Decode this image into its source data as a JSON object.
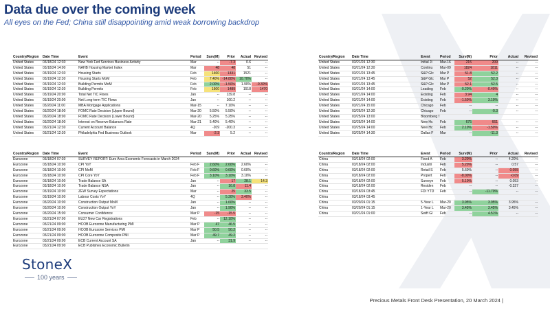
{
  "header": {
    "title": "Data due over  the  coming week",
    "subtitle": "All eyes on the Fed; China still disappointing amid weak borrowing backdrop"
  },
  "columns_left": [
    "Country/Region",
    "Date Time",
    "Event",
    "Period",
    "Surv(M)",
    "Prior",
    "Actual",
    "Revised"
  ],
  "columns_right": [
    "Country/Region",
    "Date Time",
    "Event",
    "Period",
    "Surv(M)",
    "Prior",
    "Actual",
    "Revised"
  ],
  "us_rows": [
    {
      "c": "United States",
      "dt": "03/18/24 12:30",
      "ev": "New York Fed Services Business Activity",
      "p": "Mar",
      "s": "--",
      "pr": "-7.3",
      "a": "0.6",
      "r": "--",
      "hl": {
        "pr": "red"
      }
    },
    {
      "c": "United States",
      "dt": "03/18/24 14:00",
      "ev": "NAHB Housing Market Index",
      "p": "Mar",
      "s": "48",
      "pr": "48",
      "a": "51",
      "r": "--",
      "hl": {
        "s": "red",
        "pr": "red"
      }
    },
    {
      "c": "United States",
      "dt": "03/19/24 12:30",
      "ev": "Housing Starts",
      "p": "Feb",
      "s": "1460",
      "pr": "1331",
      "a": "1521",
      "r": "--",
      "hl": {
        "s": "yellow",
        "pr": "red"
      }
    },
    {
      "c": "United States",
      "dt": "03/19/24 12:30",
      "ev": "Housing Starts MoM",
      "p": "Feb",
      "s": "7.40%",
      "pr": "-14.80%",
      "a": "10.70%",
      "r": "--",
      "hl": {
        "s": "yellow",
        "pr": "red",
        "a": "green"
      }
    },
    {
      "c": "United States",
      "dt": "03/19/24 12:30",
      "ev": "Building Permits MoM",
      "p": "Feb",
      "s": "2.00%",
      "pr": "-1.50%",
      "a": "1.90%",
      "r": "-0.30%",
      "hl": {
        "s": "green",
        "pr": "red",
        "r": "red"
      }
    },
    {
      "c": "United States",
      "dt": "03/19/24 12:30",
      "ev": "Building Permits",
      "p": "Feb",
      "s": "1500",
      "pr": "1489",
      "a": "1518",
      "r": "1470",
      "hl": {
        "s": "yellow",
        "pr": "red",
        "r": "red"
      }
    },
    {
      "c": "United States",
      "dt": "03/19/24 20:00",
      "ev": "Total Net TIC Flows",
      "p": "Jan",
      "s": "--",
      "pr": "139.8",
      "a": "--",
      "r": "--",
      "hl": {}
    },
    {
      "c": "United States",
      "dt": "03/19/24 20:00",
      "ev": "Net Long-term TIC Flows",
      "p": "Jan",
      "s": "--",
      "pr": "160.2",
      "a": "--",
      "r": "--",
      "hl": {}
    },
    {
      "c": "United States",
      "dt": "03/20/24 11:00",
      "ev": "MBA Mortgage Applications",
      "p": "Mar-15",
      "s": "--",
      "pr": "7.10%",
      "a": "--",
      "r": "--",
      "hl": {}
    },
    {
      "c": "United States",
      "dt": "03/20/24 18:00",
      "ev": "FOMC Rate Decision (Upper Bound)",
      "p": "Mar-20",
      "s": "5.50%",
      "pr": "5.50%",
      "a": "--",
      "r": "--",
      "hl": {}
    },
    {
      "c": "United States",
      "dt": "03/20/24 18:00",
      "ev": "FOMC Rate Decision (Lower Bound)",
      "p": "Mar-20",
      "s": "5.25%",
      "pr": "5.25%",
      "a": "--",
      "r": "--",
      "hl": {}
    },
    {
      "c": "United States",
      "dt": "03/20/24 18:00",
      "ev": "Interest on Reserve Balances Rate",
      "p": "Mar-21",
      "s": "5.40%",
      "pr": "5.40%",
      "a": "--",
      "r": "--",
      "hl": {}
    },
    {
      "c": "United States",
      "dt": "03/21/24 12:30",
      "ev": "Current Account Balance",
      "p": "4Q",
      "s": "-209",
      "pr": "-200.3",
      "a": "--",
      "r": "--",
      "hl": {}
    },
    {
      "c": "United States",
      "dt": "03/21/24 12:30",
      "ev": "Philadelphia Fed Business Outlook",
      "p": "Mar",
      "s": "-2.3",
      "pr": "5.2",
      "a": "--",
      "r": "--",
      "hl": {
        "s": "red"
      }
    }
  ],
  "us_right_rows": [
    {
      "c": "United States",
      "dt": "03/21/24 12:30",
      "ev": "Initial Ji",
      "p": "Mar-16",
      "s": "215",
      "pr": "209",
      "a": "--",
      "r": "--",
      "hl": {
        "s": "red",
        "pr": "red"
      }
    },
    {
      "c": "United States",
      "dt": "03/21/24 12:30",
      "ev": "Continu",
      "p": "Mar-09",
      "s": "1824",
      "pr": "1811",
      "a": "--",
      "r": "--",
      "hl": {
        "s": "red",
        "pr": "red"
      }
    },
    {
      "c": "United States",
      "dt": "03/21/24 13:45",
      "ev": "S&P Glc",
      "p": "Mar P",
      "s": "51.8",
      "pr": "52.2",
      "a": "--",
      "r": "--",
      "hl": {
        "s": "red",
        "pr": "green"
      }
    },
    {
      "c": "United States",
      "dt": "03/21/24 13:45",
      "ev": "S&P Glc",
      "p": "Mar P",
      "s": "52",
      "pr": "52.3",
      "a": "--",
      "r": "--",
      "hl": {
        "s": "red",
        "pr": "green"
      }
    },
    {
      "c": "United States",
      "dt": "03/21/24 13:45",
      "ev": "S&P Glc",
      "p": "Mar P",
      "s": "52.1",
      "pr": "52.5",
      "a": "--",
      "r": "--",
      "hl": {
        "s": "red",
        "pr": "green"
      }
    },
    {
      "c": "United States",
      "dt": "03/21/24 14:00",
      "ev": "Leading",
      "p": "Feb",
      "s": "-0.20%",
      "pr": "-0.40%",
      "a": "--",
      "r": "--",
      "hl": {
        "s": "green",
        "pr": "red"
      }
    },
    {
      "c": "United States",
      "dt": "03/21/24 14:00",
      "ev": "Existing",
      "p": "Feb",
      "s": "3.94",
      "pr": "4",
      "a": "--",
      "r": "--",
      "hl": {
        "s": "red",
        "pr": "green"
      }
    },
    {
      "c": "United States",
      "dt": "03/21/24 14:00",
      "ev": "Existing",
      "p": "Feb",
      "s": "-1.50%",
      "pr": "3.10%",
      "a": "--",
      "r": "--",
      "hl": {
        "s": "red",
        "pr": "green"
      }
    },
    {
      "c": "United States",
      "dt": "03/21/24 15:00",
      "ev": "Chicago",
      "p": "Feb",
      "s": "--",
      "pr": "--",
      "a": "--",
      "r": "--",
      "hl": {}
    },
    {
      "c": "United States",
      "dt": "03/25/24 12:30",
      "ev": "Chicago",
      "p": "Feb",
      "s": "--",
      "pr": "-0.3",
      "a": "--",
      "r": "--",
      "hl": {
        "pr": "green"
      }
    },
    {
      "c": "United States",
      "dt": "03/25/24 13:00",
      "ev": "Bloomberg March United States Economic Survey",
      "p": "",
      "s": "",
      "pr": "",
      "a": "",
      "r": "",
      "hl": {}
    },
    {
      "c": "United States",
      "dt": "03/25/24 14:00",
      "ev": "New Hc",
      "p": "Feb",
      "s": "675",
      "pr": "661",
      "a": "--",
      "r": "--",
      "hl": {
        "s": "green",
        "pr": "red"
      }
    },
    {
      "c": "United States",
      "dt": "03/25/24 14:00",
      "ev": "New Hc",
      "p": "Feb",
      "s": "2.10%",
      "pr": "-1.50%",
      "a": "--",
      "r": "--",
      "hl": {
        "s": "green",
        "pr": "red"
      }
    },
    {
      "c": "United States",
      "dt": "03/25/24 14:30",
      "ev": "Dallas F",
      "p": "Mar",
      "s": "--",
      "pr": "-11.3",
      "a": "--",
      "r": "--",
      "hl": {
        "pr": "green"
      }
    }
  ],
  "eu_rows": [
    {
      "c": "Eurozone",
      "dt": "03/18/24 07:30",
      "ev": "SURVEY REPORT: Euro Area Economic Forecasts in March 2024",
      "p": "",
      "s": "",
      "pr": "",
      "a": "",
      "r": "",
      "hl": {}
    },
    {
      "c": "Eurozone",
      "dt": "03/18/24 10:00",
      "ev": "CPI YoY",
      "p": "Feb F",
      "s": "2.60%",
      "pr": "2.60%",
      "a": "2.60%",
      "r": "--",
      "hl": {
        "s": "green",
        "pr": "green"
      }
    },
    {
      "c": "Eurozone",
      "dt": "03/18/24 10:00",
      "ev": "CPI MoM",
      "p": "Feb F",
      "s": "0.60%",
      "pr": "0.60%",
      "a": "0.60%",
      "r": "--",
      "hl": {
        "s": "green",
        "pr": "green"
      }
    },
    {
      "c": "Eurozone",
      "dt": "03/18/24 10:00",
      "ev": "CPI Core YoY",
      "p": "Feb F",
      "s": "3.10%",
      "pr": "3.10%",
      "a": "3.10%",
      "r": "--",
      "hl": {
        "s": "green",
        "pr": "green"
      }
    },
    {
      "c": "Eurozone",
      "dt": "03/18/24 10:00",
      "ev": "Trade Balance SA",
      "p": "Jan",
      "s": "--",
      "pr": "17",
      "a": "28.1",
      "r": "14.3",
      "hl": {
        "pr": "red",
        "a": "green",
        "r": "yellow"
      }
    },
    {
      "c": "Eurozone",
      "dt": "03/18/24 10:00",
      "ev": "Trade Balance NSA",
      "p": "Jan",
      "s": "--",
      "pr": "16.8",
      "a": "11.4",
      "r": "--",
      "hl": {
        "pr": "green",
        "a": "red"
      }
    },
    {
      "c": "Eurozone",
      "dt": "03/19/24 10:00",
      "ev": "ZEW Survey Expectations",
      "p": "Mar",
      "s": "--",
      "pr": "25",
      "a": "33.5",
      "r": "--",
      "hl": {
        "pr": "red",
        "a": "green"
      }
    },
    {
      "c": "Eurozone",
      "dt": "03/19/24 10:00",
      "ev": "Labour Costs YoY",
      "p": "4Q",
      "s": "--",
      "pr": "5.30%",
      "a": "3.40%",
      "r": "--",
      "hl": {
        "pr": "green",
        "a": "red"
      }
    },
    {
      "c": "Eurozone",
      "dt": "03/20/24 10:00",
      "ev": "Construction Output MoM",
      "p": "Jan",
      "s": "--",
      "pr": "1.60%",
      "a": "--",
      "r": "--",
      "hl": {
        "pr": "green"
      }
    },
    {
      "c": "Eurozone",
      "dt": "03/20/24 10:00",
      "ev": "Construction Output YoY",
      "p": "Jan",
      "s": "--",
      "pr": "1.90%",
      "a": "--",
      "r": "--",
      "hl": {
        "pr": "green"
      }
    },
    {
      "c": "Eurozone",
      "dt": "03/20/24 15:00",
      "ev": "Consumer Confidence",
      "p": "Mar P",
      "s": "-15",
      "pr": "-15.5",
      "a": "--",
      "r": "--",
      "hl": {
        "s": "red",
        "pr": "red"
      }
    },
    {
      "c": "Eurozone",
      "dt": "03/21/24 07:00",
      "ev": "EU27 New Car Registrations",
      "p": "Feb",
      "s": "--",
      "pr": "12.10%",
      "a": "--",
      "r": "--",
      "hl": {
        "pr": "green"
      }
    },
    {
      "c": "Eurozone",
      "dt": "03/21/24 09:00",
      "ev": "HCOB Eurozone Manufacturing PMI",
      "p": "Mar P",
      "s": "47",
      "pr": "46.5",
      "a": "--",
      "r": "--",
      "hl": {
        "s": "green",
        "pr": "green"
      }
    },
    {
      "c": "Eurozone",
      "dt": "03/21/24 09:00",
      "ev": "HCOB Eurozone Services PMI",
      "p": "Mar P",
      "s": "50.5",
      "pr": "50.2",
      "a": "--",
      "r": "--",
      "hl": {
        "s": "green",
        "pr": "green"
      }
    },
    {
      "c": "Eurozone",
      "dt": "03/21/24 09:00",
      "ev": "HCOB Eurozone Composite PMI",
      "p": "Mar P",
      "s": "49.7",
      "pr": "49.2",
      "a": "--",
      "r": "--",
      "hl": {
        "s": "green",
        "pr": "green"
      }
    },
    {
      "c": "Eurozone",
      "dt": "03/21/24 09:00",
      "ev": "ECB Current Account SA",
      "p": "Jan",
      "s": "--",
      "pr": "31.9",
      "a": "--",
      "r": "--",
      "hl": {
        "pr": "green"
      }
    },
    {
      "c": "Eurozone",
      "dt": "03/21/24 09:00",
      "ev": "ECB Publishes Economic Bulletin",
      "p": "",
      "s": "",
      "pr": "",
      "a": "",
      "r": "",
      "hl": {}
    }
  ],
  "cn_rows": [
    {
      "c": "China",
      "dt": "03/18/24 02:00",
      "ev": "Fixed A",
      "p": "Feb",
      "s": "3.20%",
      "pr": "--",
      "a": "4.20%",
      "r": "--",
      "hl": {
        "s": "red"
      }
    },
    {
      "c": "China",
      "dt": "03/18/24 02:00",
      "ev": "Industri",
      "p": "Feb",
      "s": "5.20%",
      "pr": "--",
      "a": "0.57",
      "r": "--",
      "hl": {
        "s": "red"
      }
    },
    {
      "c": "China",
      "dt": "03/18/24 02:00",
      "ev": "Retail S",
      "p": "Feb",
      "s": "5.60%",
      "pr": "--",
      "a": "0.055",
      "r": "--",
      "hl": {
        "a": "red"
      }
    },
    {
      "c": "China",
      "dt": "03/18/24 02:00",
      "ev": "Propert",
      "p": "Feb",
      "s": "-8.00%",
      "pr": "--",
      "a": "-0.09",
      "r": "--",
      "hl": {
        "s": "red",
        "a": "red"
      }
    },
    {
      "c": "China",
      "dt": "03/18/24 02:00",
      "ev": "Surveye",
      "p": "Feb",
      "s": "5.10%",
      "pr": "--",
      "a": "0.053",
      "r": "--",
      "hl": {
        "s": "red"
      }
    },
    {
      "c": "China",
      "dt": "03/18/24 02:00",
      "ev": "Residen",
      "p": "Feb",
      "s": "--",
      "pr": "--",
      "a": "-0.327",
      "r": "--",
      "hl": {}
    },
    {
      "c": "China",
      "dt": "03/18/24 03:45",
      "ev": "FDI YTD",
      "p": "Feb",
      "s": "--",
      "pr": "-11.70%",
      "a": "--",
      "r": "--",
      "hl": {
        "pr": "green"
      }
    },
    {
      "c": "China",
      "dt": "03/18/24 03:45",
      "ev": "",
      "p": "",
      "s": "",
      "pr": "",
      "a": "",
      "r": "",
      "hl": {}
    },
    {
      "c": "China",
      "dt": "03/20/24 01:15",
      "ev": "5-Year L",
      "p": "Mar-20",
      "s": "3.95%",
      "pr": "3.95%",
      "a": "3.95%",
      "r": "--",
      "hl": {
        "s": "green",
        "pr": "green"
      }
    },
    {
      "c": "China",
      "dt": "03/20/24 01:15",
      "ev": "1-Year L",
      "p": "Mar-20",
      "s": "3.45%",
      "pr": "3.45%",
      "a": "3.45%",
      "r": "--",
      "hl": {
        "s": "green",
        "pr": "green"
      }
    },
    {
      "c": "China",
      "dt": "03/21/24 01:00",
      "ev": "Swift Gl",
      "p": "Feb",
      "s": "--",
      "pr": "4.51%",
      "a": "--",
      "r": "--",
      "hl": {
        "pr": "green"
      }
    }
  ],
  "brand": {
    "logo": "StoneX",
    "tagline": "100 years"
  },
  "footer": "Precious Metals Front Desk Presentation, 20 March 2024 |"
}
